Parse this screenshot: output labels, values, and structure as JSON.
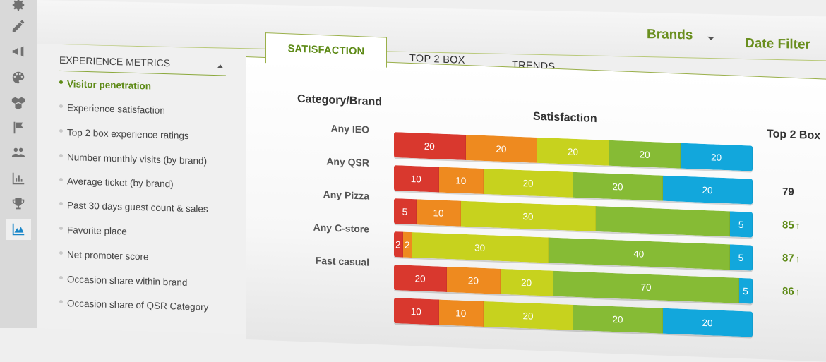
{
  "topbar": {
    "brands_label": "Brands",
    "date_filter_label": "Date Filter"
  },
  "rail": {
    "icons": [
      "gear-icon",
      "pencil-icon",
      "megaphone-icon",
      "palette-icon",
      "boxes-icon",
      "flag-icon",
      "users-icon",
      "bar-chart-icon",
      "trophy-icon",
      "area-chart-icon"
    ],
    "active_index": 9
  },
  "sidebar": {
    "title": "EXPERIENCE METRICS",
    "items": [
      {
        "label": "Visitor penetration",
        "active": true
      },
      {
        "label": "Experience satisfaction"
      },
      {
        "label": "Top 2 box experience ratings"
      },
      {
        "label": "Number monthly visits (by brand)"
      },
      {
        "label": "Average ticket (by brand)"
      },
      {
        "label": "Past 30 days guest count & sales"
      },
      {
        "label": "Favorite place"
      },
      {
        "label": "Net promoter score"
      },
      {
        "label": "Occasion share within brand"
      },
      {
        "label": "Occasion share of QSR Category"
      }
    ]
  },
  "tabs": [
    {
      "label": "SATISFACTION",
      "active": true
    },
    {
      "label": "TOP 2 BOX"
    },
    {
      "label": "TRENDS"
    }
  ],
  "table": {
    "col_category": "Category/Brand",
    "col_satisfaction": "Satisfaction",
    "col_top2box": "Top 2 Box",
    "colors": [
      "#d9382e",
      "#ee8a1f",
      "#c7d21e",
      "#86bb35",
      "#12a7dc"
    ],
    "rows": [
      {
        "label": "Any IEO",
        "values": [
          20,
          20,
          20,
          20,
          20
        ],
        "labels": [
          "20",
          "20",
          "20",
          "20",
          "20"
        ],
        "top2": ""
      },
      {
        "label": "Any QSR",
        "values": [
          10,
          10,
          20,
          20,
          20
        ],
        "labels": [
          "10",
          "10",
          "20",
          "20",
          "20"
        ],
        "top2": "79",
        "trend": ""
      },
      {
        "label": "Any Pizza",
        "values": [
          5,
          10,
          30,
          30,
          5
        ],
        "labels": [
          "5",
          "10",
          "30",
          "",
          "5"
        ],
        "top2": "85",
        "trend": "↑"
      },
      {
        "label": "Any C-store",
        "values": [
          2,
          2,
          30,
          40,
          5
        ],
        "labels": [
          "2",
          "2",
          "30",
          "40",
          "5"
        ],
        "top2": "87",
        "trend": "↑"
      },
      {
        "label": "Fast casual",
        "values": [
          20,
          20,
          20,
          70,
          5
        ],
        "labels": [
          "20",
          "20",
          "20",
          "70",
          "5"
        ],
        "top2": "86",
        "trend": "↑"
      },
      {
        "label": "",
        "values": [
          10,
          10,
          20,
          20,
          20
        ],
        "labels": [
          "10",
          "10",
          "20",
          "20",
          "20"
        ],
        "top2": ""
      }
    ]
  }
}
